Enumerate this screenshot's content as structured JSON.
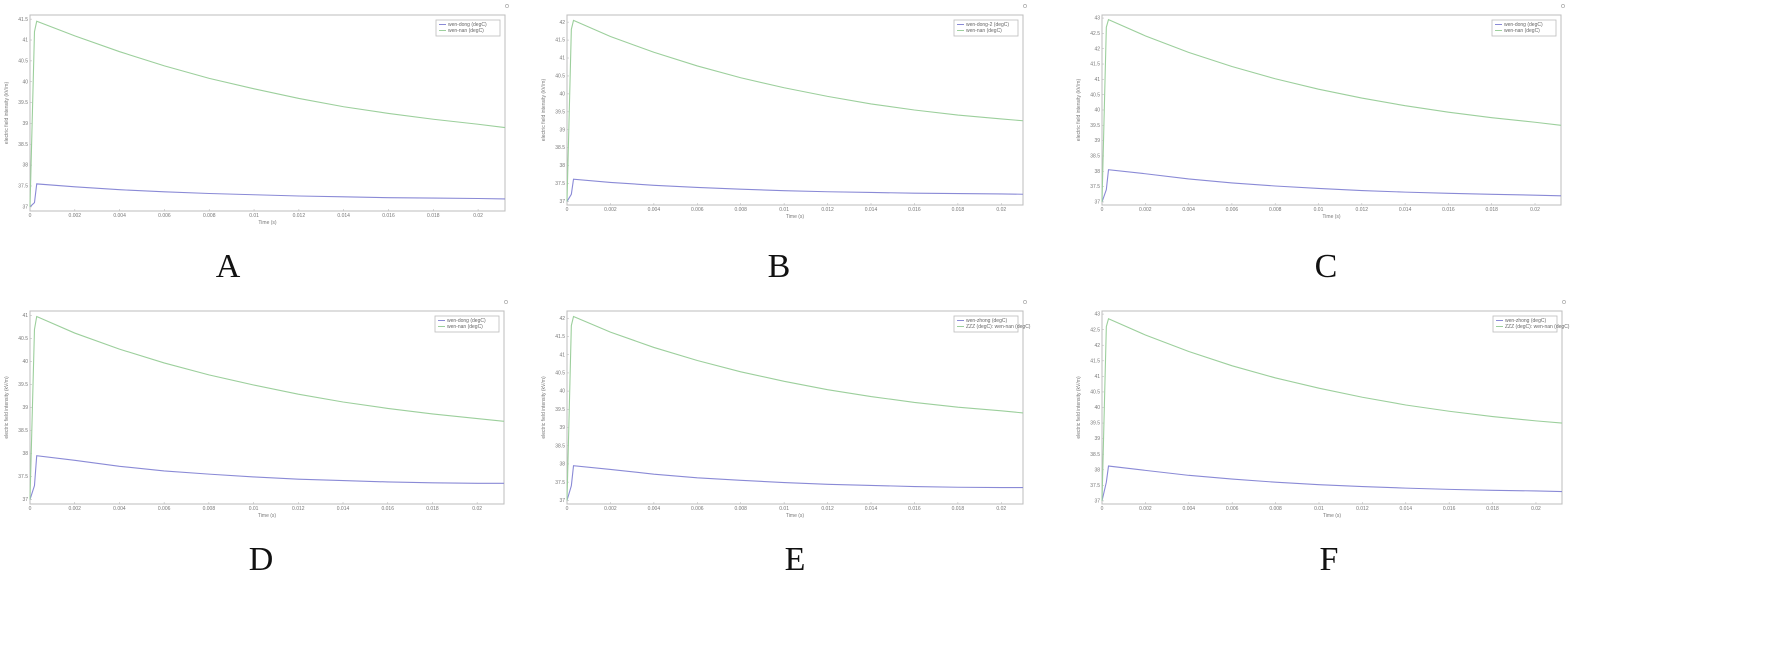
{
  "figure": {
    "panel_labels": [
      "A",
      "B",
      "C",
      "D",
      "E",
      "F"
    ],
    "colors": {
      "upper_series": "#9ccf9c",
      "lower_series": "#8a8ad6",
      "frame": "#bdbdbd",
      "text": "#777777"
    }
  },
  "chart_data": [
    {
      "type": "line",
      "panel": "A",
      "xlabel": "Time (s)",
      "ylabel": "electric field intensity (kV/m)",
      "x_ticks": [
        "0",
        "0.002",
        "0.004",
        "0.006",
        "0.008",
        "0.01",
        "0.012",
        "0.014",
        "0.016",
        "0.018",
        "0.02"
      ],
      "y_ticks": [
        "37",
        "37.5",
        "38",
        "38.5",
        "39",
        "39.5",
        "40",
        "40.5",
        "41",
        "41.5"
      ],
      "xlim": [
        0,
        0.0212
      ],
      "ylim": [
        36.9,
        41.6
      ],
      "legend": [
        "wen-dong (degC)",
        "wen-nan (degC)"
      ],
      "legend_position": "top-right",
      "series": [
        {
          "name": "wen-dong (degC)",
          "color": "#8a8ad6",
          "x": [
            0,
            0.0002,
            0.0003,
            0.002,
            0.004,
            0.006,
            0.008,
            0.01,
            0.012,
            0.014,
            0.016,
            0.018,
            0.02,
            0.0212
          ],
          "y": [
            37.0,
            37.1,
            37.55,
            37.48,
            37.41,
            37.36,
            37.32,
            37.29,
            37.26,
            37.24,
            37.22,
            37.21,
            37.2,
            37.19
          ]
        },
        {
          "name": "wen-nan (degC)",
          "color": "#9ccf9c",
          "x": [
            0,
            0.0002,
            0.0003,
            0.002,
            0.004,
            0.006,
            0.008,
            0.01,
            0.012,
            0.014,
            0.016,
            0.018,
            0.02,
            0.0212
          ],
          "y": [
            37.0,
            41.2,
            41.45,
            41.1,
            40.72,
            40.38,
            40.08,
            39.83,
            39.6,
            39.4,
            39.24,
            39.1,
            38.98,
            38.9
          ]
        }
      ]
    },
    {
      "type": "line",
      "panel": "B",
      "xlabel": "Time (s)",
      "ylabel": "electric field intensity (kV/m)",
      "x_ticks": [
        "0",
        "0.002",
        "0.004",
        "0.006",
        "0.008",
        "0.01",
        "0.012",
        "0.014",
        "0.016",
        "0.018",
        "0.02"
      ],
      "y_ticks": [
        "37",
        "37.5",
        "38",
        "38.5",
        "39",
        "39.5",
        "40",
        "40.5",
        "41",
        "41.5",
        "42"
      ],
      "xlim": [
        0,
        0.021
      ],
      "ylim": [
        36.9,
        42.2
      ],
      "legend": [
        "wen-dong-2 (degC)",
        "wen-nan (degC)"
      ],
      "legend_position": "top-right",
      "series": [
        {
          "name": "wen-dong-2 (degC)",
          "color": "#8a8ad6",
          "x": [
            0,
            0.0002,
            0.0003,
            0.002,
            0.004,
            0.006,
            0.008,
            0.01,
            0.012,
            0.014,
            0.016,
            0.018,
            0.02,
            0.021
          ],
          "y": [
            37.0,
            37.2,
            37.62,
            37.53,
            37.45,
            37.39,
            37.34,
            37.3,
            37.27,
            37.25,
            37.23,
            37.22,
            37.21,
            37.2
          ]
        },
        {
          "name": "wen-nan (degC)",
          "color": "#9ccf9c",
          "x": [
            0,
            0.0002,
            0.0003,
            0.002,
            0.004,
            0.006,
            0.008,
            0.01,
            0.012,
            0.014,
            0.016,
            0.018,
            0.02,
            0.021
          ],
          "y": [
            37.0,
            41.8,
            42.05,
            41.6,
            41.16,
            40.78,
            40.45,
            40.17,
            39.93,
            39.72,
            39.55,
            39.41,
            39.3,
            39.25
          ]
        }
      ]
    },
    {
      "type": "line",
      "panel": "C",
      "xlabel": "Time (s)",
      "ylabel": "electric field intensity (kV/m)",
      "x_ticks": [
        "0",
        "0.002",
        "0.004",
        "0.006",
        "0.008",
        "0.01",
        "0.012",
        "0.014",
        "0.016",
        "0.018",
        "0.02"
      ],
      "y_ticks": [
        "37",
        "37.5",
        "38",
        "38.5",
        "39",
        "39.5",
        "40",
        "40.5",
        "41",
        "41.5",
        "42",
        "42.5",
        "43"
      ],
      "xlim": [
        0,
        0.0212
      ],
      "ylim": [
        36.9,
        43.1
      ],
      "legend": [
        "wen-dong (degC)",
        "wen-nan (degC)"
      ],
      "legend_position": "top-right",
      "series": [
        {
          "name": "wen-dong (degC)",
          "color": "#8a8ad6",
          "x": [
            0,
            0.0002,
            0.0003,
            0.002,
            0.004,
            0.006,
            0.008,
            0.01,
            0.012,
            0.014,
            0.016,
            0.018,
            0.02,
            0.0212
          ],
          "y": [
            37.0,
            37.4,
            38.05,
            37.92,
            37.75,
            37.62,
            37.52,
            37.44,
            37.37,
            37.32,
            37.28,
            37.25,
            37.22,
            37.2
          ]
        },
        {
          "name": "wen-nan (degC)",
          "color": "#9ccf9c",
          "x": [
            0,
            0.0002,
            0.0003,
            0.002,
            0.004,
            0.006,
            0.008,
            0.01,
            0.012,
            0.014,
            0.016,
            0.018,
            0.02,
            0.0212
          ],
          "y": [
            37.0,
            42.7,
            42.95,
            42.42,
            41.88,
            41.42,
            41.02,
            40.68,
            40.39,
            40.14,
            39.93,
            39.75,
            39.6,
            39.5
          ]
        }
      ]
    },
    {
      "type": "line",
      "panel": "D",
      "xlabel": "Time (s)",
      "ylabel": "electric field intensity (kV/m)",
      "x_ticks": [
        "0",
        "0.002",
        "0.004",
        "0.006",
        "0.008",
        "0.01",
        "0.012",
        "0.014",
        "0.016",
        "0.018",
        "0.02"
      ],
      "y_ticks": [
        "37",
        "37.5",
        "38",
        "38.5",
        "39",
        "39.5",
        "40",
        "40.5",
        "41"
      ],
      "xlim": [
        0,
        0.0212
      ],
      "ylim": [
        36.9,
        41.1
      ],
      "legend": [
        "wen-dong (degC)",
        "wen-nan (degC)"
      ],
      "legend_position": "top-right",
      "series": [
        {
          "name": "wen-dong (degC)",
          "color": "#8a8ad6",
          "x": [
            0,
            0.0002,
            0.0003,
            0.002,
            0.004,
            0.006,
            0.008,
            0.01,
            0.012,
            0.014,
            0.016,
            0.018,
            0.02,
            0.0212
          ],
          "y": [
            37.0,
            37.3,
            37.95,
            37.85,
            37.72,
            37.62,
            37.55,
            37.49,
            37.44,
            37.41,
            37.38,
            37.36,
            37.35,
            37.35
          ]
        },
        {
          "name": "wen-nan (degC)",
          "color": "#9ccf9c",
          "x": [
            0,
            0.0002,
            0.0003,
            0.002,
            0.004,
            0.006,
            0.008,
            0.01,
            0.012,
            0.014,
            0.016,
            0.018,
            0.02,
            0.0212
          ],
          "y": [
            37.0,
            40.7,
            40.98,
            40.62,
            40.27,
            39.97,
            39.71,
            39.49,
            39.29,
            39.12,
            38.98,
            38.86,
            38.76,
            38.7
          ]
        }
      ]
    },
    {
      "type": "line",
      "panel": "E",
      "xlabel": "Time (s)",
      "ylabel": "electric field intensity (kV/m)",
      "x_ticks": [
        "0",
        "0.002",
        "0.004",
        "0.006",
        "0.008",
        "0.01",
        "0.012",
        "0.014",
        "0.016",
        "0.018",
        "0.02"
      ],
      "y_ticks": [
        "37",
        "37.5",
        "38",
        "38.5",
        "39",
        "39.5",
        "40",
        "40.5",
        "41",
        "41.5",
        "42"
      ],
      "xlim": [
        0,
        0.021
      ],
      "ylim": [
        36.9,
        42.2
      ],
      "legend": [
        "wen-zhong (degC)",
        "ZZZ (degC): wen-nan (degC)"
      ],
      "legend_position": "top-right",
      "series": [
        {
          "name": "wen-zhong (degC)",
          "color": "#8a8ad6",
          "x": [
            0,
            0.0002,
            0.0003,
            0.002,
            0.004,
            0.006,
            0.008,
            0.01,
            0.012,
            0.014,
            0.016,
            0.018,
            0.02,
            0.021
          ],
          "y": [
            37.0,
            37.4,
            37.95,
            37.85,
            37.72,
            37.62,
            37.55,
            37.49,
            37.44,
            37.41,
            37.38,
            37.36,
            37.35,
            37.35
          ]
        },
        {
          "name": "ZZZ (degC): wen-nan (degC)",
          "color": "#9ccf9c",
          "x": [
            0,
            0.0002,
            0.0003,
            0.002,
            0.004,
            0.006,
            0.008,
            0.01,
            0.012,
            0.014,
            0.016,
            0.018,
            0.02,
            0.021
          ],
          "y": [
            37.0,
            41.8,
            42.05,
            41.62,
            41.2,
            40.84,
            40.53,
            40.27,
            40.04,
            39.85,
            39.69,
            39.56,
            39.46,
            39.4
          ]
        }
      ]
    },
    {
      "type": "line",
      "panel": "F",
      "xlabel": "Time (s)",
      "ylabel": "electric field intensity (kV/m)",
      "x_ticks": [
        "0",
        "0.002",
        "0.004",
        "0.006",
        "0.008",
        "0.01",
        "0.012",
        "0.014",
        "0.016",
        "0.018",
        "0.02"
      ],
      "y_ticks": [
        "37",
        "37.5",
        "38",
        "38.5",
        "39",
        "39.5",
        "40",
        "40.5",
        "41",
        "41.5",
        "42",
        "42.5",
        "43"
      ],
      "xlim": [
        0,
        0.0212
      ],
      "ylim": [
        36.9,
        43.1
      ],
      "legend": [
        "wen-zhong (degC)",
        "ZZZ (degC): wen-nan (degC)"
      ],
      "legend_position": "top-right",
      "series": [
        {
          "name": "wen-zhong (degC)",
          "color": "#8a8ad6",
          "x": [
            0,
            0.0002,
            0.0003,
            0.002,
            0.004,
            0.006,
            0.008,
            0.01,
            0.012,
            0.014,
            0.016,
            0.018,
            0.02,
            0.0212
          ],
          "y": [
            37.0,
            37.6,
            38.12,
            37.98,
            37.82,
            37.7,
            37.6,
            37.52,
            37.46,
            37.41,
            37.37,
            37.34,
            37.32,
            37.3
          ]
        },
        {
          "name": "ZZZ (degC): wen-nan (degC)",
          "color": "#9ccf9c",
          "x": [
            0,
            0.0002,
            0.0003,
            0.002,
            0.004,
            0.006,
            0.008,
            0.01,
            0.012,
            0.014,
            0.016,
            0.018,
            0.02,
            0.0212
          ],
          "y": [
            37.0,
            42.6,
            42.85,
            42.33,
            41.8,
            41.34,
            40.95,
            40.62,
            40.33,
            40.08,
            39.88,
            39.71,
            39.57,
            39.5
          ]
        }
      ]
    }
  ]
}
